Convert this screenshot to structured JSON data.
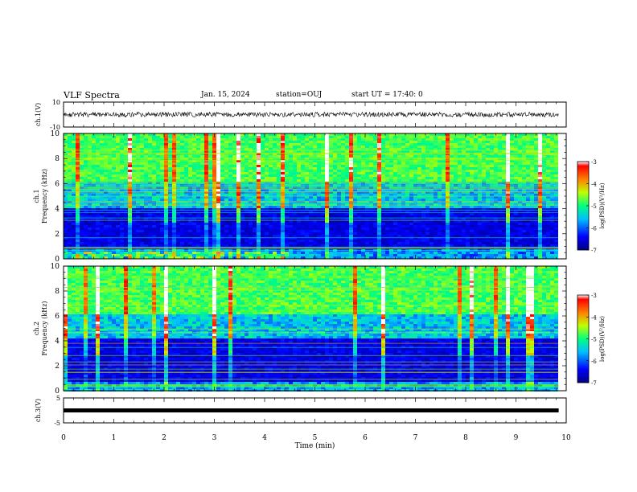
{
  "header": {
    "title": "VLF Spectra",
    "date": "Jan. 15, 2024",
    "station": "station=OUJ",
    "start": "start UT = 17:40: 0"
  },
  "chart_data": [
    {
      "type": "line",
      "panel": "ch1-waveform",
      "ylabel": "ch.1(V)",
      "ylim": [
        -10,
        10
      ],
      "yticks": [
        "10",
        "-10"
      ],
      "series": [
        {
          "values_note_level": 0
        }
      ]
    },
    {
      "type": "heatmap",
      "panel": "ch1-spectrogram",
      "ylabel_line1": "ch.1",
      "ylabel_line2": "Frequency (kHz)",
      "ylim": [
        0,
        10
      ],
      "yticks": [
        "0",
        "2",
        "4",
        "6",
        "8",
        "10"
      ],
      "colorbar": {
        "label": "log(PSD)(V²/Hz)",
        "range": [
          -7,
          -3
        ],
        "ticks": [
          "-3",
          "-4",
          "-5",
          "-6",
          "-7"
        ]
      }
    },
    {
      "type": "heatmap",
      "panel": "ch2-spectrogram",
      "ylabel_line1": "ch.2",
      "ylabel_line2": "Frequency (kHz)",
      "ylim": [
        0,
        10
      ],
      "yticks": [
        "0",
        "2",
        "4",
        "6",
        "8",
        "10"
      ],
      "colorbar": {
        "label": "log(PSD)(V²/Hz)",
        "range": [
          -7,
          -3
        ],
        "ticks": [
          "-3",
          "-4",
          "-5",
          "-6",
          "-7"
        ]
      }
    },
    {
      "type": "line",
      "panel": "ch3-waveform",
      "ylabel": "ch.3(V)",
      "ylim": [
        -5,
        5
      ],
      "yticks": [
        "5",
        "-5"
      ],
      "series": [
        {
          "constant_value": 0
        }
      ]
    }
  ],
  "xaxis": {
    "label": "Time (min)",
    "range": [
      0,
      10
    ],
    "ticks": [
      "0",
      "1",
      "2",
      "3",
      "4",
      "5",
      "6",
      "7",
      "8",
      "9",
      "10"
    ]
  },
  "colors": {
    "spectrum_low": "#00007f",
    "spectrum_mid": "#00ff7f",
    "spectrum_high": "#ff0000"
  }
}
